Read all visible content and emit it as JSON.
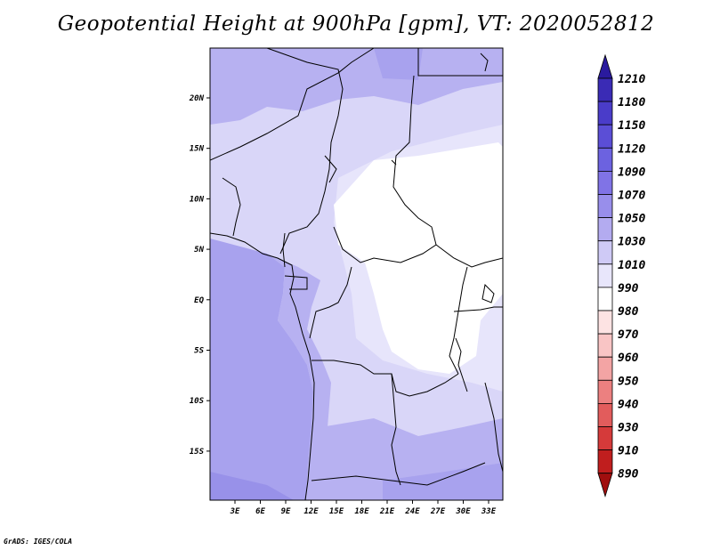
{
  "title": "Geopotential Height at 900hPa [gpm], VT: 2020052812",
  "credit": "GrADS: IGES/COLA",
  "map": {
    "lat_ticks": [
      "20N",
      "15N",
      "10N",
      "5N",
      "EQ",
      "5S",
      "10S",
      "15S"
    ],
    "lon_ticks": [
      "3E",
      "6E",
      "9E",
      "12E",
      "15E",
      "18E",
      "21E",
      "24E",
      "27E",
      "30E",
      "33E"
    ]
  },
  "colorbar": {
    "levels": [
      "1210",
      "1180",
      "1150",
      "1120",
      "1090",
      "1070",
      "1050",
      "1030",
      "1010",
      "990",
      "980",
      "970",
      "960",
      "950",
      "940",
      "930",
      "910",
      "890"
    ],
    "colors": [
      "#2a1a9e",
      "#3a2bb5",
      "#4a3cc9",
      "#5b4ed6",
      "#6c62e0",
      "#8073e6",
      "#988eeb",
      "#b3abf0",
      "#cfcaf6",
      "#e8e6fb",
      "#ffffff",
      "#fde3e3",
      "#f9c5c5",
      "#f3a4a4",
      "#ec8080",
      "#e25c5c",
      "#d53a3a",
      "#c01e1e",
      "#a00e0e"
    ]
  },
  "colors": {
    "ocean": "#a8a2ee",
    "coast_band": "#b7b1f1",
    "land_light": "#d9d6f8",
    "land_lighter": "#e7e5fb",
    "core_white": "#ffffff",
    "border": "#000000"
  }
}
